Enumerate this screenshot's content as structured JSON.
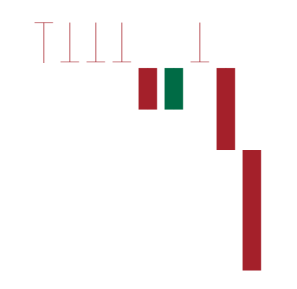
{
  "chart_data": {
    "type": "candlestick",
    "title": "",
    "xlabel": "",
    "ylabel": "",
    "ylim": [
      0,
      100
    ],
    "grid": false,
    "legend": "none",
    "colors": {
      "up": "#006b45",
      "down": "#a4202a",
      "background": "#ffffff"
    },
    "candles": [
      {
        "index": 1,
        "open": 92.3,
        "close": 92.1,
        "high": 92.3,
        "low": 78.2
      },
      {
        "index": 2,
        "open": 78.7,
        "close": 78.5,
        "high": 92.2,
        "low": 78.5
      },
      {
        "index": 3,
        "open": 78.7,
        "close": 78.5,
        "high": 92.2,
        "low": 78.5
      },
      {
        "index": 4,
        "open": 78.7,
        "close": 78.5,
        "high": 92.2,
        "low": 78.5
      },
      {
        "index": 5,
        "open": 76.5,
        "close": 62.1,
        "high": 76.5,
        "low": 62.1
      },
      {
        "index": 6,
        "open": 62.1,
        "close": 76.5,
        "high": 76.5,
        "low": 62.1
      },
      {
        "index": 7,
        "open": 78.7,
        "close": 78.5,
        "high": 92.2,
        "low": 78.5
      },
      {
        "index": 8,
        "open": 76.5,
        "close": 48.1,
        "high": 76.5,
        "low": 48.1
      },
      {
        "index": 9,
        "open": 48.1,
        "close": 6.4,
        "high": 48.1,
        "low": 6.4
      }
    ]
  }
}
